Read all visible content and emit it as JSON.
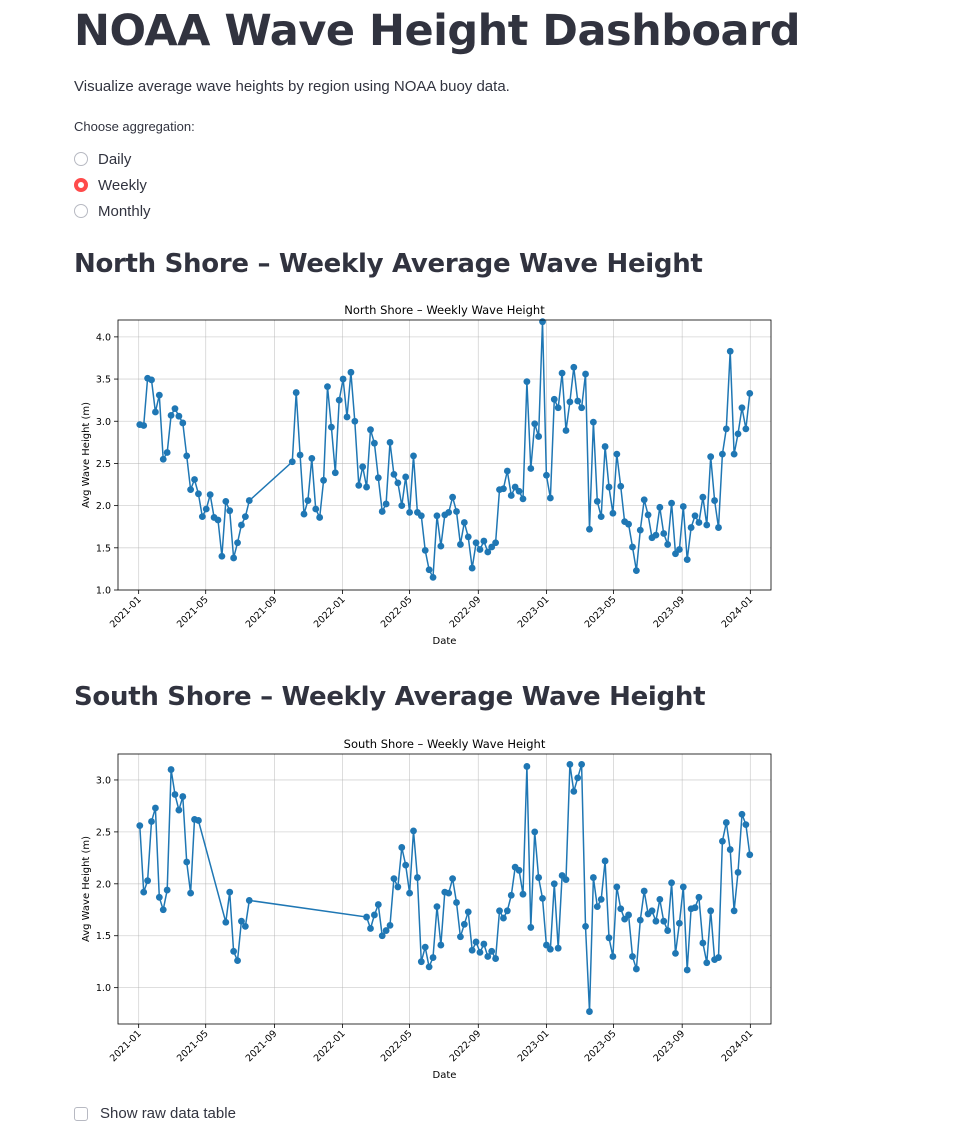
{
  "page": {
    "title": "NOAA Wave Height Dashboard",
    "subtitle": "Visualize average wave heights by region using NOAA buoy data.",
    "aggregation_label": "Choose aggregation:",
    "aggregation_options": [
      "Daily",
      "Weekly",
      "Monthly"
    ],
    "aggregation_selected": "Weekly",
    "accent_color": "#ff4b4b",
    "raw_table_checkbox": "Show raw data table"
  },
  "sections": {
    "north": {
      "heading": "North Shore – Weekly Average Wave Height"
    },
    "south": {
      "heading": "South Shore – Weekly Average Wave Height"
    }
  },
  "chart_data": [
    {
      "type": "line",
      "title": "North Shore – Weekly Wave Height",
      "xlabel": "Date",
      "ylabel": "Avg Wave Height (m)",
      "ylim": [
        1.0,
        4.2
      ],
      "yticks": [
        "1.0",
        "1.5",
        "2.0",
        "2.5",
        "3.0",
        "3.5",
        "4.0"
      ],
      "xticks": [
        "2021-01",
        "2021-05",
        "2021-09",
        "2022-01",
        "2022-05",
        "2022-09",
        "2023-01",
        "2023-05",
        "2023-09",
        "2024-01"
      ],
      "grid": true,
      "color": "#1f77b4",
      "x": [
        "2021-01-03",
        "2021-01-10",
        "2021-01-17",
        "2021-01-24",
        "2021-01-31",
        "2021-02-07",
        "2021-02-14",
        "2021-02-21",
        "2021-02-28",
        "2021-03-07",
        "2021-03-14",
        "2021-03-21",
        "2021-03-28",
        "2021-04-04",
        "2021-04-11",
        "2021-04-18",
        "2021-04-25",
        "2021-05-02",
        "2021-05-09",
        "2021-05-16",
        "2021-05-23",
        "2021-05-30",
        "2021-06-06",
        "2021-06-13",
        "2021-06-20",
        "2021-06-27",
        "2021-07-04",
        "2021-07-11",
        "2021-07-18",
        "2021-10-03",
        "2021-10-10",
        "2021-10-17",
        "2021-10-24",
        "2021-10-31",
        "2021-11-07",
        "2021-11-14",
        "2021-11-21",
        "2021-11-28",
        "2021-12-05",
        "2021-12-12",
        "2021-12-19",
        "2021-12-26",
        "2022-01-02",
        "2022-01-09",
        "2022-01-16",
        "2022-01-23",
        "2022-01-30",
        "2022-02-06",
        "2022-02-13",
        "2022-02-20",
        "2022-02-27",
        "2022-03-06",
        "2022-03-13",
        "2022-03-20",
        "2022-03-27",
        "2022-04-03",
        "2022-04-10",
        "2022-04-17",
        "2022-04-24",
        "2022-05-01",
        "2022-05-08",
        "2022-05-15",
        "2022-05-22",
        "2022-05-29",
        "2022-06-05",
        "2022-06-12",
        "2022-06-19",
        "2022-06-26",
        "2022-07-03",
        "2022-07-10",
        "2022-07-17",
        "2022-07-24",
        "2022-07-31",
        "2022-08-07",
        "2022-08-14",
        "2022-08-21",
        "2022-08-28",
        "2022-09-04",
        "2022-09-11",
        "2022-09-18",
        "2022-09-25",
        "2022-10-02",
        "2022-10-09",
        "2022-10-16",
        "2022-10-23",
        "2022-10-30",
        "2022-11-06",
        "2022-11-13",
        "2022-11-20",
        "2022-11-27",
        "2022-12-04",
        "2022-12-11",
        "2022-12-18",
        "2022-12-25",
        "2023-01-01",
        "2023-01-08",
        "2023-01-15",
        "2023-01-22",
        "2023-01-29",
        "2023-02-05",
        "2023-02-12",
        "2023-02-19",
        "2023-02-26",
        "2023-03-05",
        "2023-03-12",
        "2023-03-19",
        "2023-03-26",
        "2023-04-02",
        "2023-04-09",
        "2023-04-16",
        "2023-04-23",
        "2023-04-30",
        "2023-05-07",
        "2023-05-14",
        "2023-05-21",
        "2023-05-28",
        "2023-06-04",
        "2023-06-11",
        "2023-06-18",
        "2023-06-25",
        "2023-07-02",
        "2023-07-09",
        "2023-07-16",
        "2023-07-23",
        "2023-07-30",
        "2023-08-06",
        "2023-08-13",
        "2023-08-20",
        "2023-08-27",
        "2023-09-03",
        "2023-09-10",
        "2023-09-17",
        "2023-09-24",
        "2023-10-01",
        "2023-10-08",
        "2023-10-15",
        "2023-10-22",
        "2023-10-29",
        "2023-11-05",
        "2023-11-12",
        "2023-11-19",
        "2023-11-26",
        "2023-12-03",
        "2023-12-10",
        "2023-12-17",
        "2023-12-24",
        "2023-12-31"
      ],
      "values": [
        2.96,
        2.95,
        3.51,
        3.49,
        3.11,
        3.31,
        2.55,
        2.63,
        3.07,
        3.15,
        3.06,
        2.98,
        2.59,
        2.19,
        2.31,
        2.14,
        1.87,
        1.96,
        2.13,
        1.86,
        1.83,
        1.4,
        2.05,
        1.94,
        1.38,
        1.56,
        1.77,
        1.87,
        2.06,
        2.52,
        3.34,
        2.6,
        1.9,
        2.06,
        2.56,
        1.96,
        1.86,
        2.3,
        3.41,
        2.93,
        2.39,
        3.25,
        3.5,
        3.05,
        3.58,
        3.0,
        2.24,
        2.46,
        2.22,
        2.9,
        2.74,
        2.33,
        1.93,
        2.02,
        2.75,
        2.37,
        2.27,
        2.0,
        2.34,
        1.92,
        2.59,
        1.92,
        1.88,
        1.47,
        1.24,
        1.15,
        1.88,
        1.52,
        1.89,
        1.92,
        2.1,
        1.93,
        1.54,
        1.8,
        1.63,
        1.26,
        1.56,
        1.48,
        1.58,
        1.45,
        1.51,
        1.56,
        2.19,
        2.2,
        2.41,
        2.12,
        2.22,
        2.17,
        2.08,
        3.47,
        2.44,
        2.97,
        2.82,
        4.18,
        2.36,
        2.09,
        3.26,
        3.16,
        3.57,
        2.89,
        3.23,
        3.64,
        3.24,
        3.16,
        3.56,
        1.72,
        2.99,
        2.05,
        1.87,
        2.7,
        2.22,
        1.91,
        2.61,
        2.23,
        1.81,
        1.78,
        1.51,
        1.23,
        1.71,
        2.07,
        1.89,
        1.62,
        1.65,
        1.98,
        1.67,
        1.54,
        2.03,
        1.43,
        1.48,
        1.99,
        1.36,
        1.74,
        1.88,
        1.8,
        2.1,
        1.77,
        2.58,
        2.06,
        1.74,
        2.61,
        2.91,
        3.83,
        2.61,
        2.85,
        3.16,
        2.91,
        3.33
      ]
    },
    {
      "type": "line",
      "title": "South Shore – Weekly Wave Height",
      "xlabel": "Date",
      "ylabel": "Avg Wave Height (m)",
      "ylim": [
        0.65,
        3.25
      ],
      "yticks": [
        "1.0",
        "1.5",
        "2.0",
        "2.5",
        "3.0"
      ],
      "xticks": [
        "2021-01",
        "2021-05",
        "2021-09",
        "2022-01",
        "2022-05",
        "2022-09",
        "2023-01",
        "2023-05",
        "2023-09",
        "2024-01"
      ],
      "grid": true,
      "color": "#1f77b4",
      "x": [
        "2021-01-03",
        "2021-01-10",
        "2021-01-17",
        "2021-01-24",
        "2021-01-31",
        "2021-02-07",
        "2021-02-14",
        "2021-02-21",
        "2021-02-28",
        "2021-03-07",
        "2021-03-14",
        "2021-03-21",
        "2021-03-28",
        "2021-04-04",
        "2021-04-11",
        "2021-04-18",
        "2021-06-06",
        "2021-06-13",
        "2021-06-20",
        "2021-06-27",
        "2021-07-04",
        "2021-07-11",
        "2021-07-18",
        "2022-02-13",
        "2022-02-20",
        "2022-02-27",
        "2022-03-06",
        "2022-03-13",
        "2022-03-20",
        "2022-03-27",
        "2022-04-03",
        "2022-04-10",
        "2022-04-17",
        "2022-04-24",
        "2022-05-01",
        "2022-05-08",
        "2022-05-15",
        "2022-05-22",
        "2022-05-29",
        "2022-06-05",
        "2022-06-12",
        "2022-06-19",
        "2022-06-26",
        "2022-07-03",
        "2022-07-10",
        "2022-07-17",
        "2022-07-24",
        "2022-07-31",
        "2022-08-07",
        "2022-08-14",
        "2022-08-21",
        "2022-08-28",
        "2022-09-04",
        "2022-09-11",
        "2022-09-18",
        "2022-09-25",
        "2022-10-02",
        "2022-10-09",
        "2022-10-16",
        "2022-10-23",
        "2022-10-30",
        "2022-11-06",
        "2022-11-13",
        "2022-11-20",
        "2022-11-27",
        "2022-12-04",
        "2022-12-11",
        "2022-12-18",
        "2022-12-25",
        "2023-01-01",
        "2023-01-08",
        "2023-01-15",
        "2023-01-22",
        "2023-01-29",
        "2023-02-05",
        "2023-02-12",
        "2023-02-19",
        "2023-02-26",
        "2023-03-05",
        "2023-03-12",
        "2023-03-19",
        "2023-03-26",
        "2023-04-02",
        "2023-04-09",
        "2023-04-16",
        "2023-04-23",
        "2023-04-30",
        "2023-05-07",
        "2023-05-14",
        "2023-05-21",
        "2023-05-28",
        "2023-06-04",
        "2023-06-11",
        "2023-06-18",
        "2023-06-25",
        "2023-07-02",
        "2023-07-09",
        "2023-07-16",
        "2023-07-23",
        "2023-07-30",
        "2023-08-06",
        "2023-08-13",
        "2023-08-20",
        "2023-08-27",
        "2023-09-03",
        "2023-09-10",
        "2023-09-17",
        "2023-09-24",
        "2023-10-01",
        "2023-10-08",
        "2023-10-15",
        "2023-10-22",
        "2023-10-29",
        "2023-11-05",
        "2023-11-12",
        "2023-11-19",
        "2023-11-26",
        "2023-12-03",
        "2023-12-10",
        "2023-12-17",
        "2023-12-24",
        "2023-12-31"
      ],
      "values": [
        2.56,
        1.92,
        2.03,
        2.6,
        2.73,
        1.87,
        1.75,
        1.94,
        3.1,
        2.86,
        2.71,
        2.84,
        2.21,
        1.91,
        2.62,
        2.61,
        1.63,
        1.92,
        1.35,
        1.26,
        1.64,
        1.59,
        1.84,
        1.68,
        1.57,
        1.7,
        1.8,
        1.5,
        1.55,
        1.6,
        2.05,
        1.97,
        2.35,
        2.18,
        1.91,
        2.51,
        2.06,
        1.25,
        1.39,
        1.2,
        1.29,
        1.78,
        1.41,
        1.92,
        1.91,
        2.05,
        1.82,
        1.49,
        1.61,
        1.73,
        1.36,
        1.44,
        1.34,
        1.42,
        1.3,
        1.35,
        1.28,
        1.74,
        1.67,
        1.74,
        1.89,
        2.16,
        2.13,
        1.9,
        3.13,
        1.58,
        2.5,
        2.06,
        1.86,
        1.41,
        1.37,
        2.0,
        1.38,
        2.08,
        2.04,
        3.15,
        2.89,
        3.02,
        3.15,
        1.59,
        0.77,
        2.06,
        1.78,
        1.85,
        2.22,
        1.48,
        1.3,
        1.97,
        1.76,
        1.66,
        1.7,
        1.3,
        1.18,
        1.65,
        1.93,
        1.71,
        1.74,
        1.64,
        1.85,
        1.64,
        1.55,
        2.01,
        1.33,
        1.62,
        1.97,
        1.17,
        1.76,
        1.77,
        1.87,
        1.43,
        1.24,
        1.74,
        1.27,
        1.29,
        2.41,
        2.59,
        2.33,
        1.74,
        2.11,
        2.67,
        2.57,
        2.28
      ]
    }
  ]
}
